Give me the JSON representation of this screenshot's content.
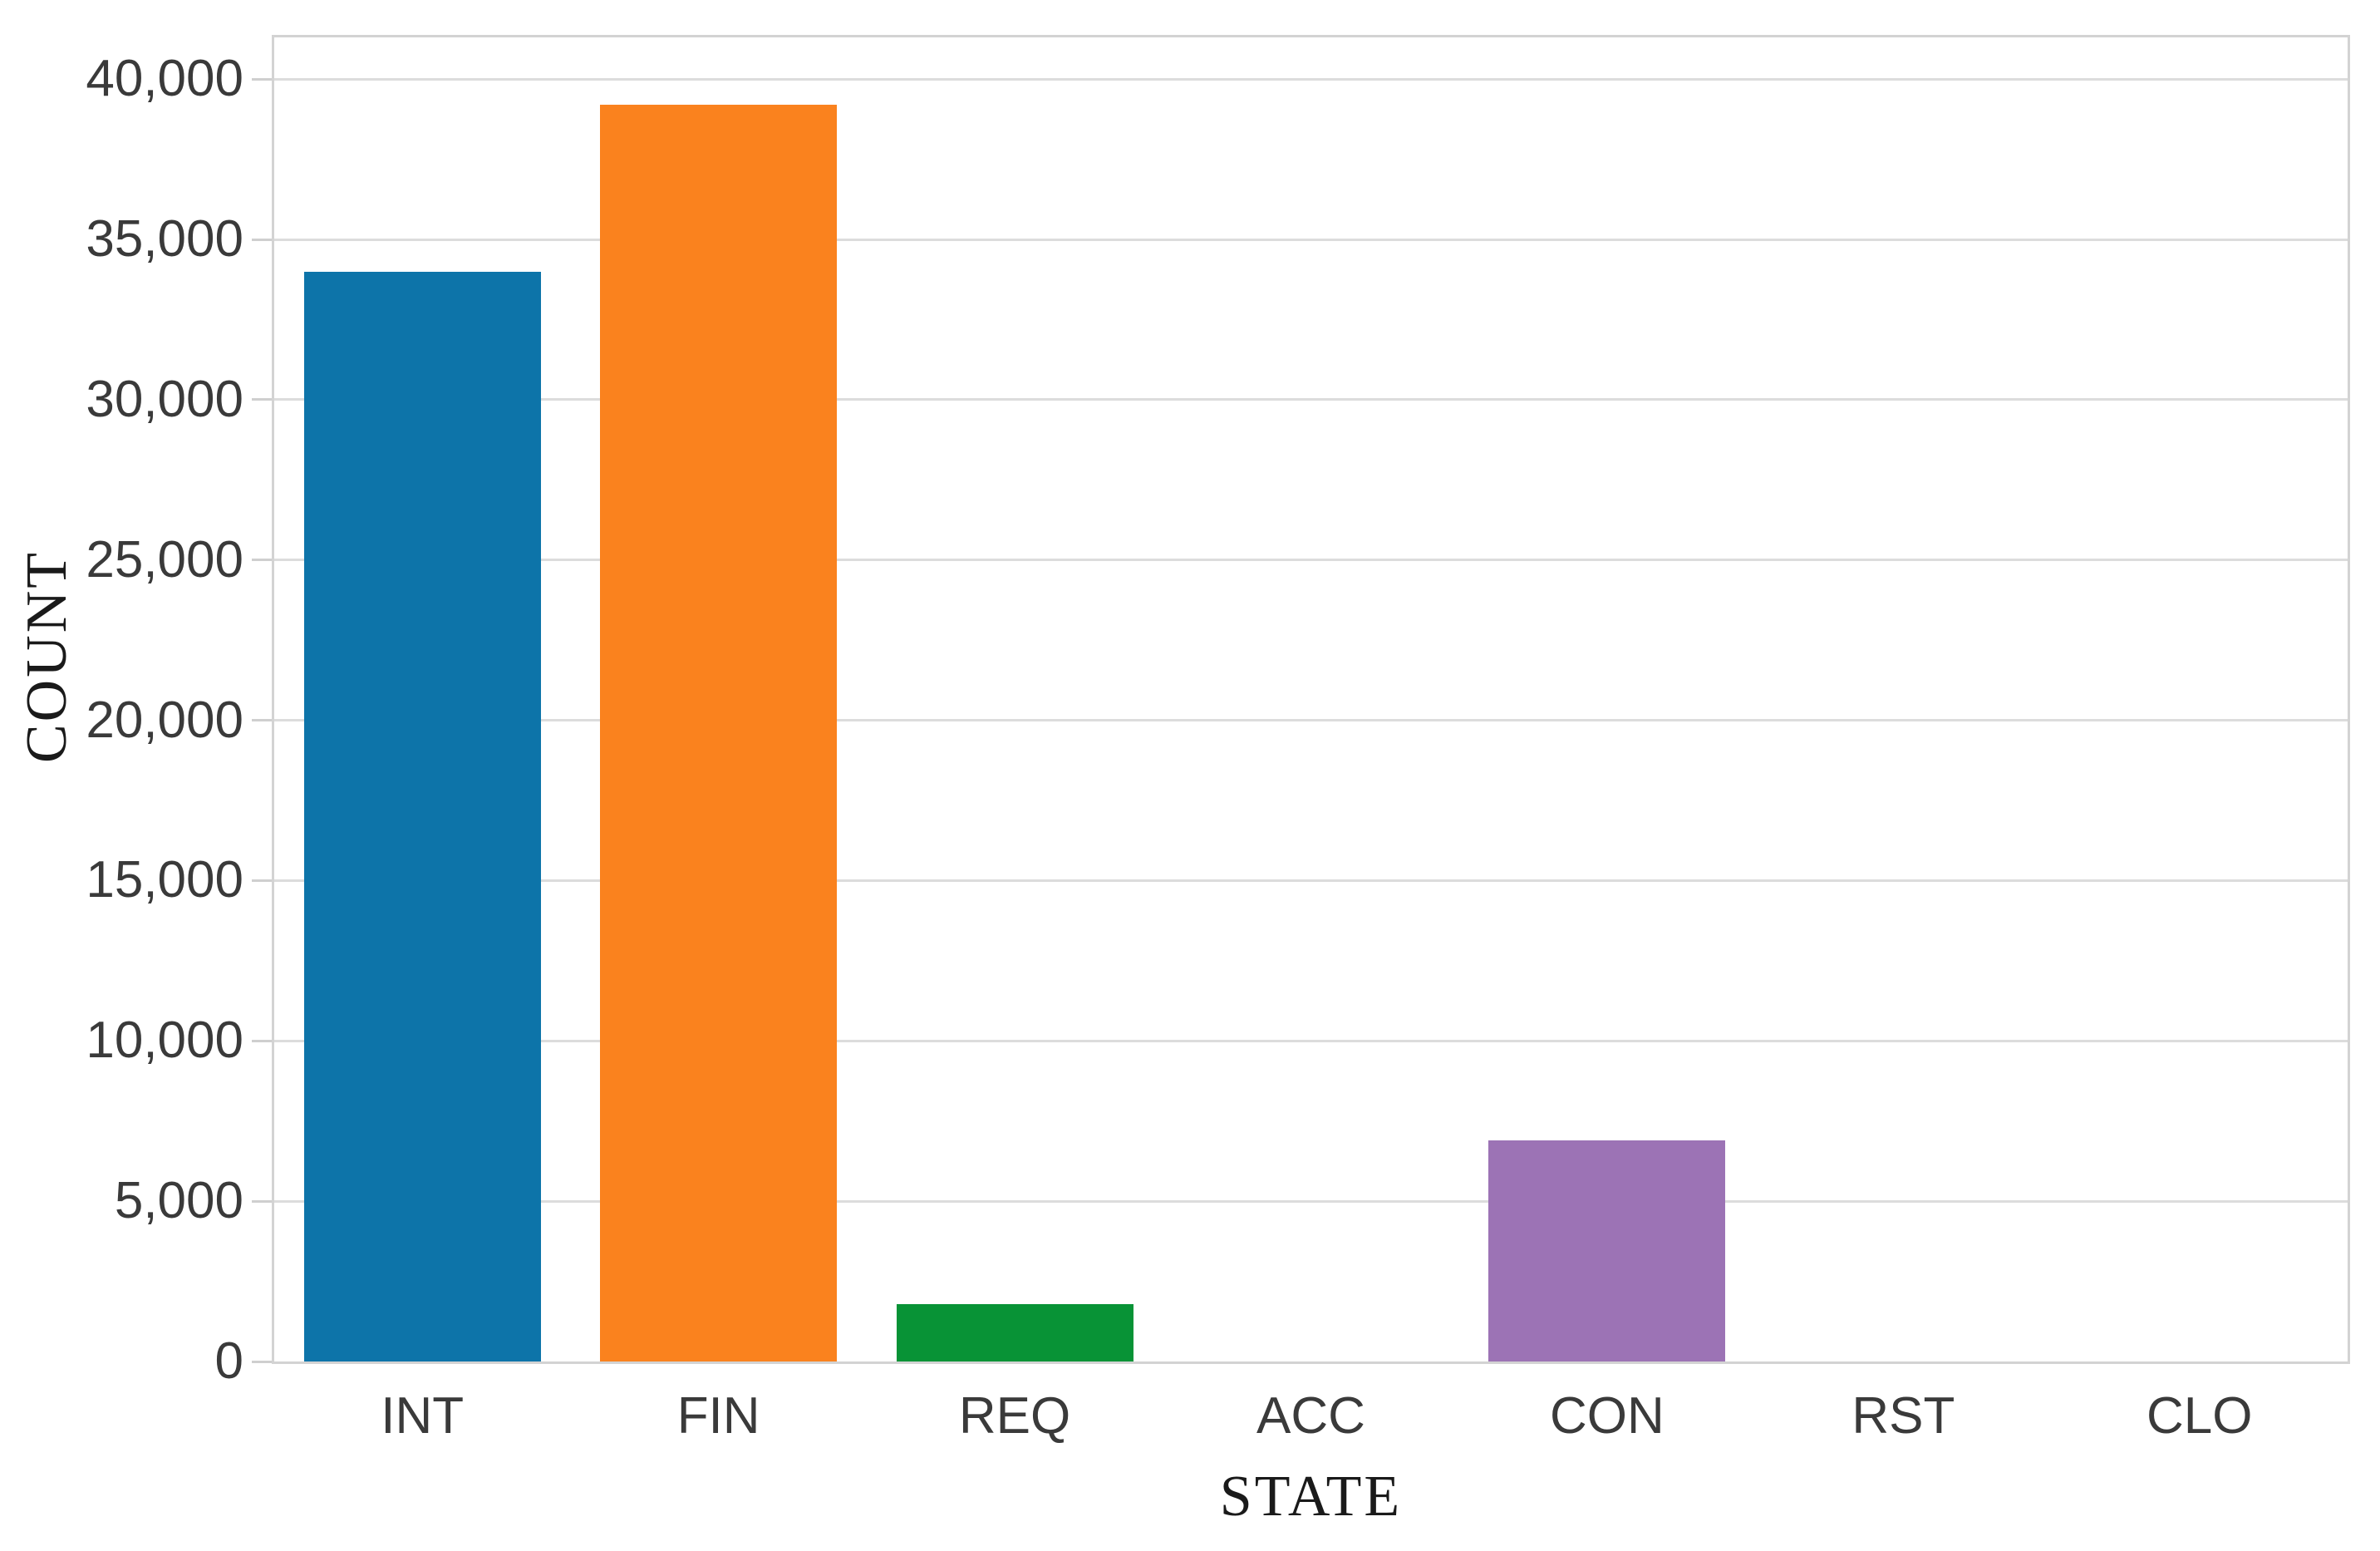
{
  "figure": {
    "background": "#ffffff"
  },
  "chart_data": {
    "type": "bar",
    "categories": [
      "INT",
      "FIN",
      "REQ",
      "ACC",
      "CON",
      "RST",
      "CLO"
    ],
    "values": [
      34000,
      39200,
      1800,
      0,
      6900,
      0,
      0
    ],
    "title": "",
    "xlabel": "STATE",
    "ylabel": "COUNT",
    "ylim": [
      0,
      41300
    ],
    "yticks": [
      {
        "value": 0,
        "label": "0"
      },
      {
        "value": 5000,
        "label": "5,000"
      },
      {
        "value": 10000,
        "label": "10,000"
      },
      {
        "value": 15000,
        "label": "15,000"
      },
      {
        "value": 20000,
        "label": "20,000"
      },
      {
        "value": 25000,
        "label": "25,000"
      },
      {
        "value": 30000,
        "label": "30,000"
      },
      {
        "value": 35000,
        "label": "35,000"
      },
      {
        "value": 40000,
        "label": "40,000"
      }
    ],
    "grid": true,
    "legend": false,
    "bar_width_fraction": 0.8,
    "bar_colors": {
      "INT": "#0d74a9",
      "FIN": "#fa821e",
      "REQ": "#089336",
      "CON": "#9c73b5"
    },
    "default_bar_color": "#9e9e9e"
  },
  "style": {
    "grid_color": "#dcdcdc",
    "frame_color": "#d3d3d3",
    "tick_mark_color": "#cfcfcf",
    "tick_label_color": "#3a3a3a",
    "axis_title_color": "#1a1a1a"
  }
}
